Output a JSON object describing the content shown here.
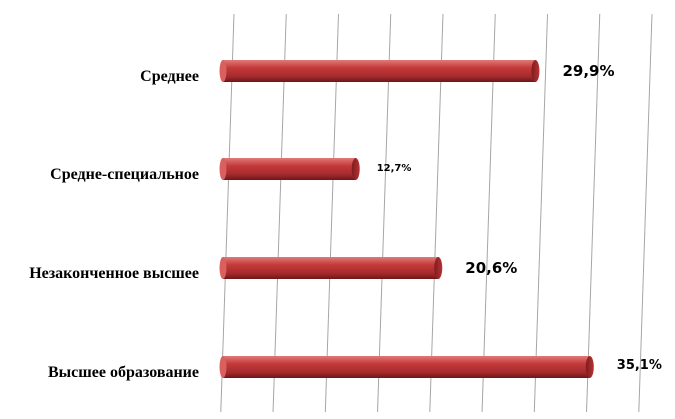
{
  "chart_data": {
    "type": "bar",
    "orientation": "horizontal",
    "style": "3d-cylinder",
    "categories": [
      "Среднее",
      "Средне-специальное",
      "Незаконченное высшее",
      "Высшее образование"
    ],
    "values": [
      29.9,
      12.7,
      20.6,
      35.1
    ],
    "value_labels": [
      "29,9%",
      "12,7%",
      "20,6%",
      "35,1%"
    ],
    "xlim": [
      0,
      40
    ],
    "grid": true,
    "legend": "none",
    "colors": {
      "bar": "#c0393b",
      "bar_dark": "#7e1c1e",
      "bar_light": "#e8807d",
      "grid": "#a6a6a6"
    }
  }
}
